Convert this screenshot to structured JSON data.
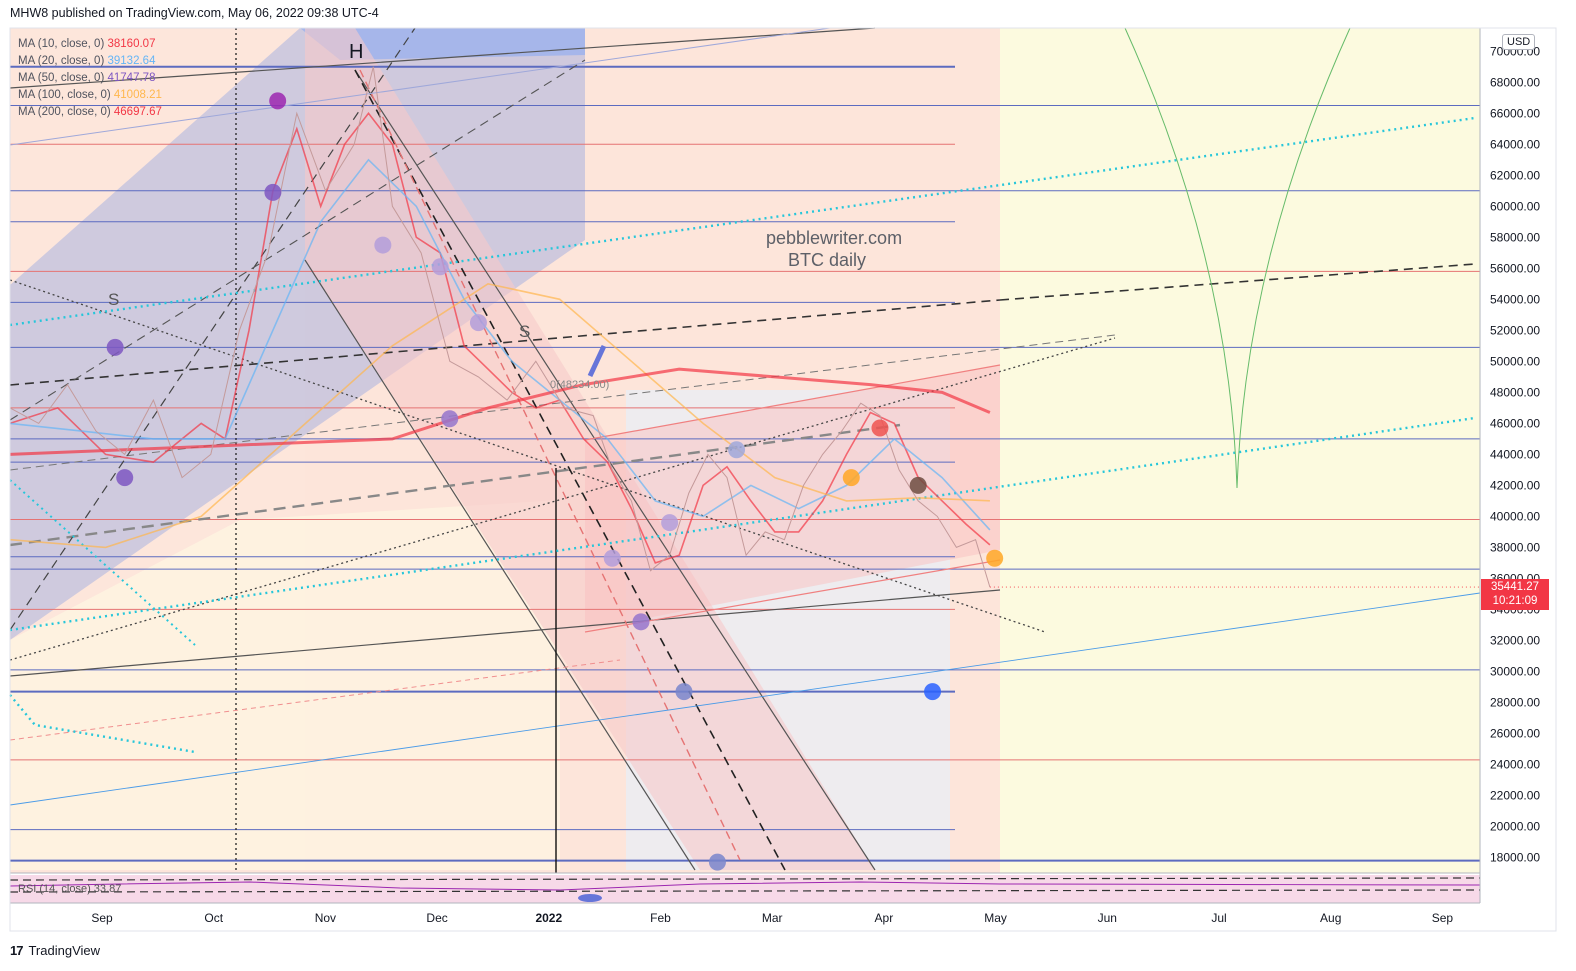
{
  "header": {
    "published_line": "MHW8 published on TradingView.com, May 06, 2022 09:38 UTC-4"
  },
  "footer": {
    "brand": "TradingView",
    "logo_glyph": "17"
  },
  "watermark": {
    "line1": "pebblewriter.com",
    "line2": "BTC daily"
  },
  "moving_averages": [
    {
      "label": "MA (10, close, 0)",
      "value": "38160.07",
      "color": "#f23645"
    },
    {
      "label": "MA (20, close, 0)",
      "value": "39132.64",
      "color": "#64b5f6"
    },
    {
      "label": "MA (50, close, 0)",
      "value": "41747.78",
      "color": "#7e57c2"
    },
    {
      "label": "MA (100, close, 0)",
      "value": "41008.21",
      "color": "#ffb74d"
    },
    {
      "label": "MA (200, close, 0)",
      "value": "46697.67",
      "color": "#f23645"
    }
  ],
  "price_axis": {
    "currency": "USD",
    "ticks": [
      "70000.00",
      "68000.00",
      "66000.00",
      "64000.00",
      "62000.00",
      "60000.00",
      "58000.00",
      "56000.00",
      "54000.00",
      "52000.00",
      "50000.00",
      "48000.00",
      "46000.00",
      "44000.00",
      "42000.00",
      "40000.00",
      "38000.00",
      "36000.00",
      "34000.00",
      "32000.00",
      "30000.00",
      "28000.00",
      "26000.00",
      "24000.00",
      "22000.00",
      "20000.00",
      "18000.00"
    ]
  },
  "current_price": {
    "value": "35441.27",
    "countdown": "10:21:09",
    "color": "#f23645"
  },
  "annotations": {
    "head": "H",
    "shoulder_left": "S",
    "shoulder_right": "S",
    "price_note": "0(48234.00)"
  },
  "rsi": {
    "label": "RSI (14, close) 33.87"
  },
  "chart_data": {
    "type": "line",
    "title": "",
    "x_labels": [
      "Sep",
      "Oct",
      "Nov",
      "Dec",
      "2022",
      "Feb",
      "Mar",
      "Apr",
      "May",
      "Jun",
      "Jul",
      "Aug",
      "Sep"
    ],
    "ylim": [
      17000,
      71500
    ],
    "ylabel": "USD",
    "series": [
      {
        "name": "MA (10, close, 0)",
        "color": "#f23645",
        "points": [
          [
            0,
            46000
          ],
          [
            10,
            47000
          ],
          [
            20,
            44000
          ],
          [
            30,
            43500
          ],
          [
            40,
            46000
          ],
          [
            45,
            45000
          ],
          [
            50,
            52000
          ],
          [
            55,
            61000
          ],
          [
            60,
            65000
          ],
          [
            65,
            60000
          ],
          [
            70,
            64000
          ],
          [
            75,
            66000
          ],
          [
            80,
            64000
          ],
          [
            85,
            58000
          ],
          [
            90,
            57000
          ],
          [
            95,
            51000
          ],
          [
            100,
            49500
          ],
          [
            105,
            48000
          ],
          [
            110,
            47000
          ],
          [
            115,
            47500
          ],
          [
            120,
            45000
          ],
          [
            125,
            43500
          ],
          [
            130,
            40500
          ],
          [
            135,
            37000
          ],
          [
            140,
            37500
          ],
          [
            145,
            42000
          ],
          [
            150,
            43200
          ],
          [
            155,
            41000
          ],
          [
            160,
            39000
          ],
          [
            165,
            39000
          ],
          [
            170,
            41000
          ],
          [
            175,
            44000
          ],
          [
            180,
            46700
          ],
          [
            185,
            46000
          ],
          [
            190,
            42500
          ],
          [
            195,
            41000
          ],
          [
            200,
            39500
          ],
          [
            205,
            38160
          ]
        ]
      },
      {
        "name": "MA (20, close, 0)",
        "color": "#64b5f6",
        "points": [
          [
            0,
            46000
          ],
          [
            15,
            45500
          ],
          [
            30,
            45000
          ],
          [
            45,
            45000
          ],
          [
            55,
            52000
          ],
          [
            65,
            59000
          ],
          [
            75,
            63000
          ],
          [
            85,
            60000
          ],
          [
            95,
            54000
          ],
          [
            105,
            50000
          ],
          [
            115,
            47500
          ],
          [
            125,
            45000
          ],
          [
            135,
            41000
          ],
          [
            145,
            40000
          ],
          [
            155,
            42000
          ],
          [
            165,
            40500
          ],
          [
            175,
            42000
          ],
          [
            185,
            45000
          ],
          [
            195,
            42500
          ],
          [
            205,
            39130
          ]
        ]
      },
      {
        "name": "MA (100, close, 0)",
        "color": "#ffb74d",
        "points": [
          [
            0,
            38500
          ],
          [
            20,
            38000
          ],
          [
            40,
            40000
          ],
          [
            60,
            45500
          ],
          [
            80,
            51000
          ],
          [
            100,
            55000
          ],
          [
            115,
            54000
          ],
          [
            130,
            50000
          ],
          [
            145,
            46000
          ],
          [
            160,
            42500
          ],
          [
            175,
            41000
          ],
          [
            190,
            41200
          ],
          [
            205,
            41008
          ]
        ]
      },
      {
        "name": "MA (200, close, 0)",
        "color": "#f23645",
        "points": [
          [
            0,
            44000
          ],
          [
            40,
            44500
          ],
          [
            80,
            45000
          ],
          [
            100,
            47000
          ],
          [
            120,
            48500
          ],
          [
            140,
            49500
          ],
          [
            160,
            49000
          ],
          [
            180,
            48500
          ],
          [
            195,
            48000
          ],
          [
            205,
            46700
          ]
        ]
      },
      {
        "name": "",
        "color": "#131722",
        "points": [
          [
            0,
            47000
          ],
          [
            6,
            46000
          ],
          [
            12,
            48500
          ],
          [
            18,
            45500
          ],
          [
            24,
            44000
          ],
          [
            30,
            47500
          ],
          [
            36,
            42500
          ],
          [
            42,
            44000
          ],
          [
            48,
            52000
          ],
          [
            54,
            57000
          ],
          [
            60,
            66000
          ],
          [
            66,
            61000
          ],
          [
            72,
            64000
          ],
          [
            76,
            69000
          ],
          [
            80,
            60000
          ],
          [
            86,
            57000
          ],
          [
            92,
            50000
          ],
          [
            98,
            49000
          ],
          [
            104,
            47500
          ],
          [
            110,
            50000
          ],
          [
            116,
            47000
          ],
          [
            122,
            46500
          ],
          [
            126,
            43000
          ],
          [
            130,
            41000
          ],
          [
            134,
            36500
          ],
          [
            138,
            37500
          ],
          [
            142,
            41500
          ],
          [
            146,
            44000
          ],
          [
            150,
            42500
          ],
          [
            154,
            37500
          ],
          [
            158,
            39000
          ],
          [
            162,
            38500
          ],
          [
            166,
            42000
          ],
          [
            170,
            44000
          ],
          [
            174,
            45500
          ],
          [
            178,
            47300
          ],
          [
            182,
            46500
          ],
          [
            186,
            43000
          ],
          [
            190,
            41000
          ],
          [
            194,
            40000
          ],
          [
            198,
            38000
          ],
          [
            202,
            38500
          ],
          [
            205,
            35441
          ]
        ]
      }
    ],
    "levels": [
      69000,
      66500,
      64000,
      61000,
      59000,
      55800,
      53800,
      50900,
      47000,
      45000,
      43500,
      39800,
      37400,
      36600,
      34000,
      30100,
      28700,
      24300,
      19800,
      17800
    ],
    "markers": [
      {
        "x": 22,
        "y": 50900,
        "color": "#7e57c2"
      },
      {
        "x": 24,
        "y": 42500,
        "color": "#7e57c2"
      },
      {
        "x": 56,
        "y": 66800,
        "color": "#9c27b0"
      },
      {
        "x": 55,
        "y": 60900,
        "color": "#7e57c2"
      },
      {
        "x": 78,
        "y": 57500,
        "color": "#b39ddb"
      },
      {
        "x": 90,
        "y": 56100,
        "color": "#b39ddb"
      },
      {
        "x": 98,
        "y": 52500,
        "color": "#b39ddb"
      },
      {
        "x": 92,
        "y": 46300,
        "color": "#9575cd"
      },
      {
        "x": 126,
        "y": 37300,
        "color": "#b39ddb"
      },
      {
        "x": 132,
        "y": 33200,
        "color": "#9575cd"
      },
      {
        "x": 138,
        "y": 39600,
        "color": "#b39ddb"
      },
      {
        "x": 141,
        "y": 28700,
        "color": "#7986cb"
      },
      {
        "x": 148,
        "y": 17700,
        "color": "#7986cb"
      },
      {
        "x": 152,
        "y": 44300,
        "color": "#9fa8da"
      },
      {
        "x": 176,
        "y": 42500,
        "color": "#ffa726"
      },
      {
        "x": 182,
        "y": 45700,
        "color": "#ef5350"
      },
      {
        "x": 190,
        "y": 42000,
        "color": "#6d4c41"
      },
      {
        "x": 193,
        "y": 28700,
        "color": "#2962ff"
      },
      {
        "x": 206,
        "y": 37300,
        "color": "#ffa726"
      }
    ]
  }
}
